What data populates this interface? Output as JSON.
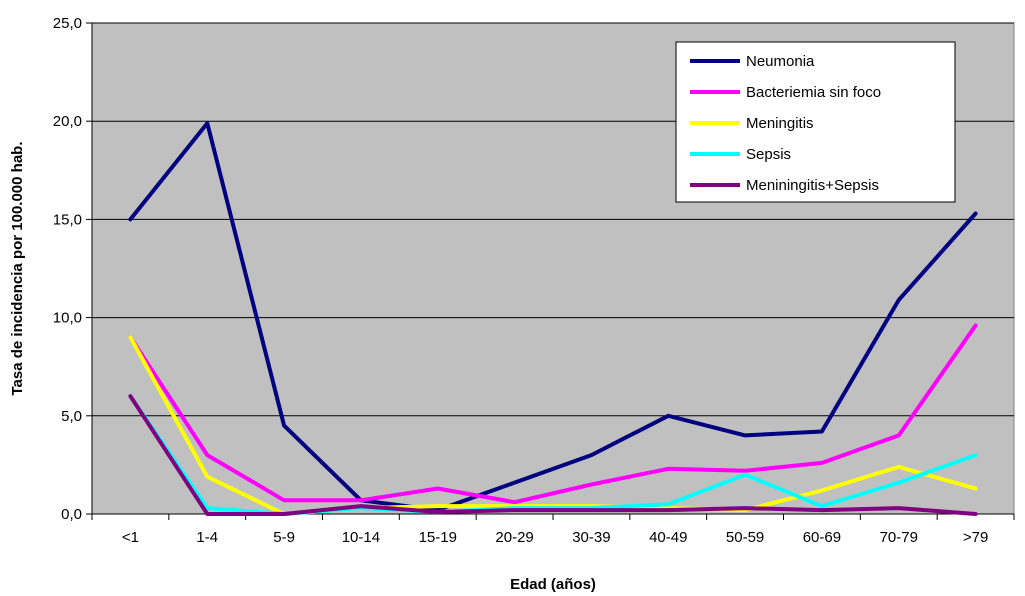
{
  "chart_data": {
    "type": "line",
    "title": "",
    "xlabel": "Edad (años)",
    "ylabel": "Tasa de incidencia por 100.000 hab.",
    "ylim": [
      0,
      25
    ],
    "yticks": [
      "0,0",
      "5,0",
      "10,0",
      "15,0",
      "20,0",
      "25,0"
    ],
    "categories": [
      "<1",
      "1-4",
      "5-9",
      "10-14",
      "15-19",
      "20-29",
      "30-39",
      "40-49",
      "50-59",
      "60-69",
      "70-79",
      ">79"
    ],
    "grid": true,
    "legend_position": "top-right",
    "plot_background": "#c0c0c0",
    "series": [
      {
        "name": "Neumonia",
        "color": "#000080",
        "values": [
          15.0,
          19.9,
          4.5,
          0.7,
          0.2,
          1.6,
          3.0,
          5.0,
          4.0,
          4.2,
          10.9,
          15.3
        ]
      },
      {
        "name": "Bacteriemia sin foco",
        "color": "#ff00ff",
        "values": [
          9.0,
          3.0,
          0.7,
          0.7,
          1.3,
          0.6,
          1.5,
          2.3,
          2.2,
          2.6,
          4.0,
          9.6
        ]
      },
      {
        "name": "Meningitis",
        "color": "#ffff00",
        "values": [
          9.0,
          1.9,
          0.0,
          0.3,
          0.4,
          0.4,
          0.4,
          0.3,
          0.2,
          1.2,
          2.4,
          1.3
        ]
      },
      {
        "name": "Sepsis",
        "color": "#00ffff",
        "values": [
          6.0,
          0.3,
          0.0,
          0.3,
          0.1,
          0.3,
          0.3,
          0.5,
          2.0,
          0.4,
          1.6,
          3.0
        ]
      },
      {
        "name": "Meniningitis+Sepsis",
        "color": "#800080",
        "values": [
          6.0,
          0.0,
          0.0,
          0.4,
          0.1,
          0.2,
          0.2,
          0.2,
          0.3,
          0.2,
          0.3,
          0.0
        ]
      }
    ]
  }
}
